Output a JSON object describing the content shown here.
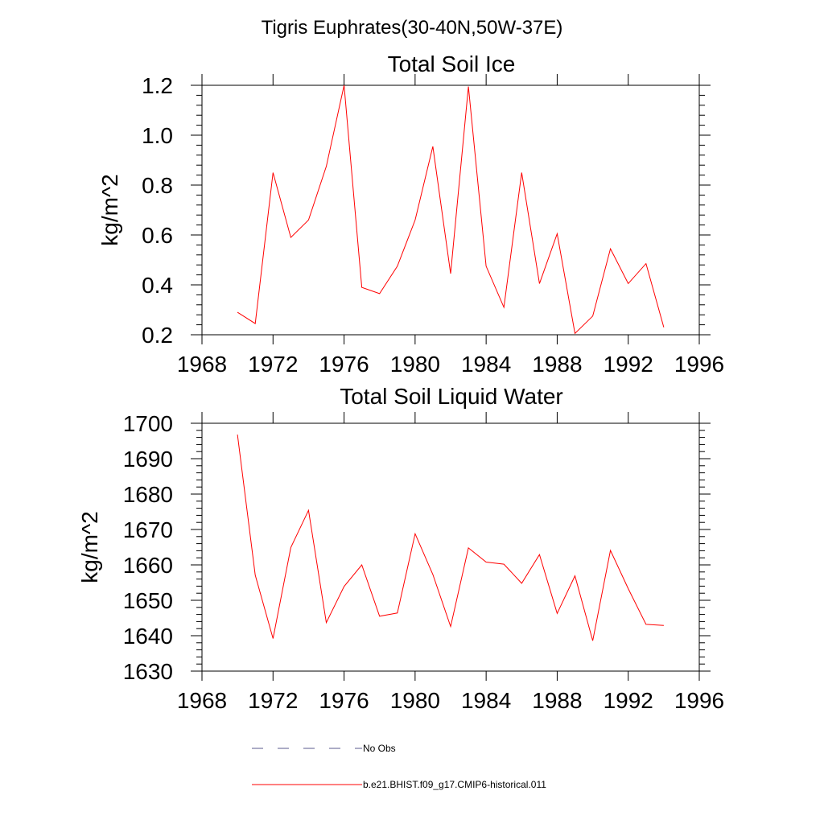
{
  "suptitle": "Tigris Euphrates(30-40N,50W-37E)",
  "chart_data": [
    {
      "type": "line",
      "title": "Total Soil Ice",
      "ylabel": "kg/m^2",
      "xlabel": "",
      "xlim": [
        1968,
        1996
      ],
      "ylim": [
        0.2,
        1.2
      ],
      "xticks": [
        1968,
        1972,
        1976,
        1980,
        1984,
        1988,
        1992,
        1996
      ],
      "yticks": [
        0.2,
        0.4,
        0.6,
        0.8,
        1.0,
        1.2
      ],
      "ytick_labels": [
        "0.2",
        "0.4",
        "0.6",
        "0.8",
        "1.0",
        "1.2"
      ],
      "grid": false,
      "series": [
        {
          "name": "b.e21.BHIST.f09_g17.CMIP6-historical.011",
          "color": "#ff0000",
          "x": [
            1970,
            1971,
            1972,
            1973,
            1974,
            1975,
            1976,
            1977,
            1978,
            1979,
            1980,
            1981,
            1982,
            1983,
            1984,
            1985,
            1986,
            1987,
            1988,
            1989,
            1990,
            1991,
            1992,
            1993,
            1994
          ],
          "y": [
            0.29,
            0.245,
            0.85,
            0.59,
            0.66,
            0.875,
            1.2,
            0.39,
            0.365,
            0.475,
            0.66,
            0.955,
            0.445,
            1.195,
            0.475,
            0.31,
            0.85,
            0.405,
            0.605,
            0.205,
            0.275,
            0.545,
            0.405,
            0.485,
            0.23
          ]
        }
      ]
    },
    {
      "type": "line",
      "title": "Total Soil Liquid Water",
      "ylabel": "kg/m^2",
      "xlabel": "",
      "xlim": [
        1968,
        1996
      ],
      "ylim": [
        1630,
        1700
      ],
      "xticks": [
        1968,
        1972,
        1976,
        1980,
        1984,
        1988,
        1992,
        1996
      ],
      "yticks": [
        1630,
        1640,
        1650,
        1660,
        1670,
        1680,
        1690,
        1700
      ],
      "ytick_labels": [
        "1630",
        "1640",
        "1650",
        "1660",
        "1670",
        "1680",
        "1690",
        "1700"
      ],
      "grid": false,
      "series": [
        {
          "name": "b.e21.BHIST.f09_g17.CMIP6-historical.011",
          "color": "#ff0000",
          "x": [
            1970,
            1971,
            1972,
            1973,
            1974,
            1975,
            1976,
            1977,
            1978,
            1979,
            1980,
            1981,
            1982,
            1983,
            1984,
            1985,
            1986,
            1987,
            1988,
            1989,
            1990,
            1991,
            1992,
            1993,
            1994
          ],
          "y": [
            1696.8,
            1657.1,
            1639.2,
            1664.9,
            1675.4,
            1643.7,
            1653.9,
            1660.0,
            1645.5,
            1646.4,
            1668.8,
            1657.3,
            1642.6,
            1664.8,
            1660.8,
            1660.2,
            1654.8,
            1662.9,
            1646.3,
            1656.9,
            1638.6,
            1664.1,
            1653.3,
            1643.2,
            1642.9
          ]
        }
      ]
    }
  ],
  "legend": {
    "placement": "bottom",
    "items": [
      {
        "label": "No Obs",
        "style": "dashed",
        "color": "#5a5a8c"
      },
      {
        "label": "b.e21.BHIST.f09_g17.CMIP6-historical.011",
        "style": "solid",
        "color": "#ff0000"
      }
    ]
  }
}
